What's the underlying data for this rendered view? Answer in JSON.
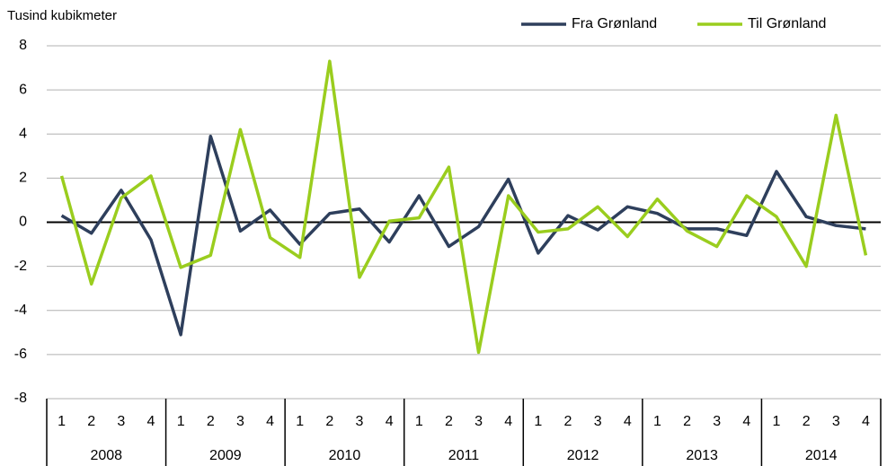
{
  "chart_data": {
    "type": "line",
    "y_axis_label": "Tusind kubikmeter",
    "categories": [
      "1",
      "2",
      "3",
      "4",
      "1",
      "2",
      "3",
      "4",
      "1",
      "2",
      "3",
      "4",
      "1",
      "2",
      "3",
      "4",
      "1",
      "2",
      "3",
      "4",
      "1",
      "2",
      "3",
      "4",
      "1",
      "2",
      "3",
      "4"
    ],
    "years": [
      "2008",
      "2009",
      "2010",
      "2011",
      "2012",
      "2013",
      "2014"
    ],
    "series": [
      {
        "name": "Fra Grønland",
        "color": "#2e3f5c",
        "values": [
          0.3,
          -0.5,
          1.45,
          -0.8,
          -5.1,
          3.9,
          -0.4,
          0.55,
          -1.0,
          0.4,
          0.6,
          -0.9,
          1.2,
          -1.1,
          -0.2,
          1.95,
          -1.4,
          0.3,
          -0.35,
          0.7,
          0.4,
          -0.3,
          -0.3,
          -0.6,
          2.3,
          0.25,
          -0.15,
          -0.3
        ]
      },
      {
        "name": "Til Grønland",
        "color": "#9acd1e",
        "values": [
          2.1,
          -2.8,
          1.1,
          2.1,
          -2.05,
          -1.5,
          4.2,
          -0.7,
          -1.6,
          7.3,
          -2.5,
          0.05,
          0.2,
          2.5,
          -5.9,
          1.2,
          -0.45,
          -0.3,
          0.7,
          -0.65,
          1.05,
          -0.4,
          -1.1,
          1.2,
          0.25,
          -2.0,
          4.85,
          -1.5
        ]
      }
    ],
    "ylim": [
      -8,
      8
    ],
    "yticks": [
      -8,
      -6,
      -4,
      -2,
      0,
      2,
      4,
      6,
      8
    ],
    "grid": true,
    "legend": "top-right"
  }
}
